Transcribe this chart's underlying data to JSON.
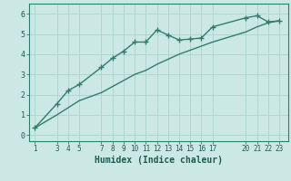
{
  "title": "",
  "xlabel": "Humidex (Indice chaleur)",
  "ylabel": "",
  "background_color": "#cce8e4",
  "grid_color": "#aad4cc",
  "line_color": "#2e7d6e",
  "x_ticks": [
    1,
    3,
    4,
    5,
    7,
    8,
    9,
    10,
    11,
    12,
    13,
    14,
    15,
    16,
    17,
    20,
    21,
    22,
    23
  ],
  "series1_x": [
    1,
    3,
    4,
    5,
    7,
    8,
    9,
    10,
    11,
    12,
    13,
    14,
    15,
    16,
    17,
    20,
    21,
    22,
    23
  ],
  "series1_y": [
    0.35,
    1.55,
    2.2,
    2.5,
    3.35,
    3.8,
    4.15,
    4.6,
    4.6,
    5.2,
    4.95,
    4.7,
    4.75,
    4.8,
    5.35,
    5.8,
    5.9,
    5.6,
    5.65
  ],
  "series2_x": [
    1,
    3,
    4,
    5,
    7,
    8,
    9,
    10,
    11,
    12,
    13,
    14,
    15,
    16,
    17,
    20,
    21,
    22,
    23
  ],
  "series2_y": [
    0.35,
    1.0,
    1.35,
    1.7,
    2.1,
    2.4,
    2.7,
    3.0,
    3.2,
    3.5,
    3.75,
    4.0,
    4.2,
    4.4,
    4.6,
    5.1,
    5.35,
    5.55,
    5.65
  ],
  "ylim": [
    -0.3,
    6.5
  ],
  "xlim": [
    0.5,
    23.8
  ],
  "yticks": [
    0,
    1,
    2,
    3,
    4,
    5,
    6
  ],
  "linewidth": 1.0,
  "markersize": 4.5,
  "tick_fontsize": 5.5,
  "xlabel_fontsize": 7.0
}
